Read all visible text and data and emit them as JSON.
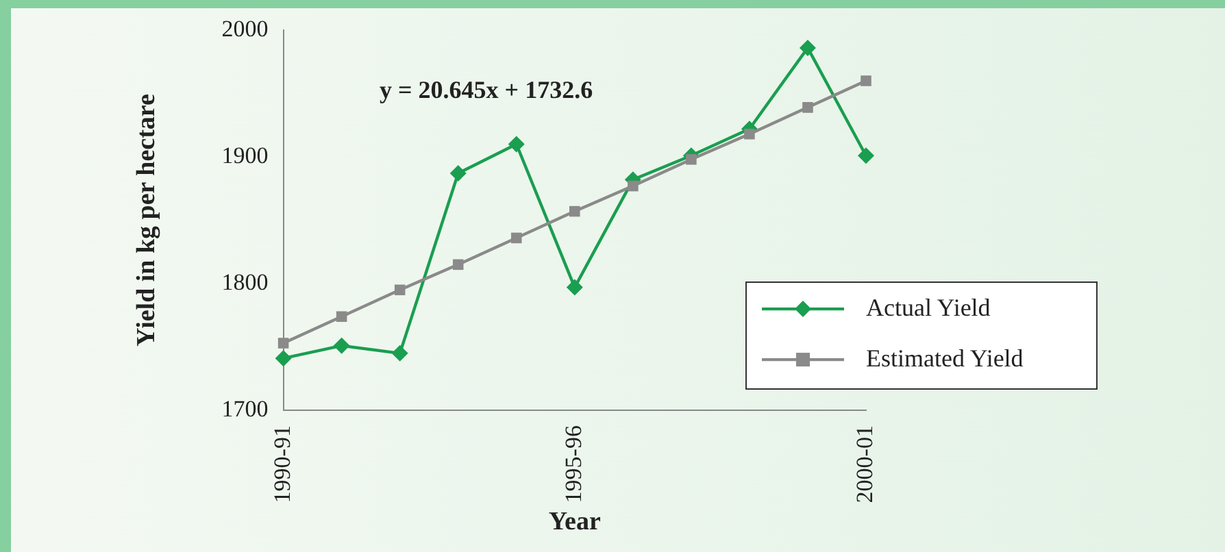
{
  "chart_data": {
    "type": "line",
    "xlabel": "Year",
    "ylabel": "Yield in kg per hectare",
    "categories": [
      "1990-91",
      null,
      null,
      null,
      null,
      "1995-96",
      null,
      null,
      null,
      null,
      "2000-01"
    ],
    "series": [
      {
        "name": "Actual Yield",
        "color": "#1a9e50",
        "marker": "diamond",
        "values": [
          1741,
          1751,
          1745,
          1887,
          1910,
          1797,
          1882,
          1901,
          1922,
          1986,
          1901
        ]
      },
      {
        "name": "Estimated Yield",
        "color": "#8a8a8a",
        "marker": "square",
        "values": [
          1753,
          1774,
          1795,
          1815,
          1836,
          1857,
          1877,
          1898,
          1918,
          1939,
          1960
        ]
      }
    ],
    "ylim": [
      1700,
      2000
    ],
    "yticks": [
      1700,
      1800,
      1900,
      2000
    ],
    "annotations": [
      "y = 20.645x + 1732.6"
    ],
    "grid": false,
    "legend": "bottom right",
    "line_style": "solid"
  }
}
